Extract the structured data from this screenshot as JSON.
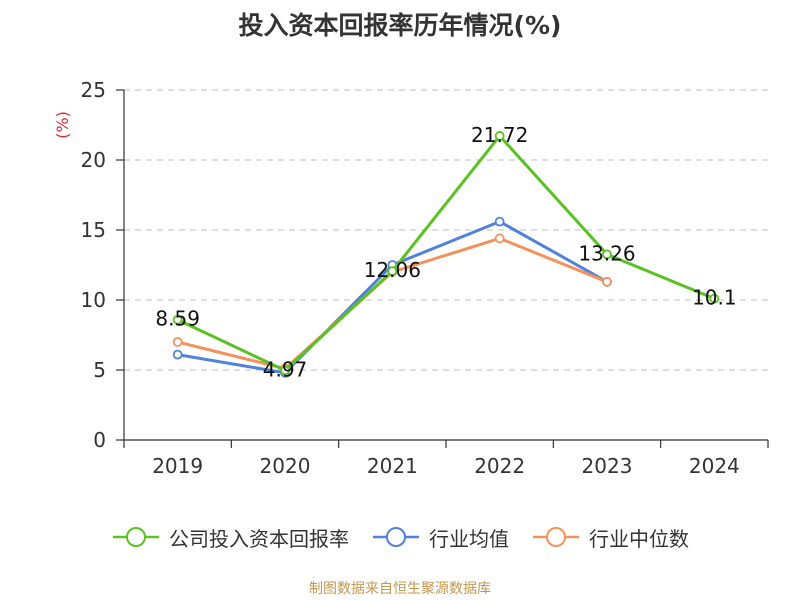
{
  "chart_data": {
    "type": "line",
    "title": "投入资本回报率历年情况(%)",
    "ylabel": "(%)",
    "xlabel": "",
    "ylim": [
      0,
      25
    ],
    "yticks": [
      0,
      5,
      10,
      15,
      20,
      25
    ],
    "categories": [
      "2019",
      "2020",
      "2021",
      "2022",
      "2023",
      "2024"
    ],
    "grid": true,
    "legend_position": "bottom",
    "series": [
      {
        "name": "公司投入资本回报率",
        "color": "#5ac220",
        "values": [
          8.59,
          4.97,
          12.06,
          21.72,
          13.26,
          10.1
        ],
        "labels": [
          "8.59",
          "4.97",
          "12.06",
          "21.72",
          "13.26",
          "10.1"
        ]
      },
      {
        "name": "行业均值",
        "color": "#4f81dd",
        "values": [
          6.1,
          4.8,
          12.5,
          15.6,
          11.3,
          null
        ]
      },
      {
        "name": "行业中位数",
        "color": "#f5915b",
        "values": [
          7.0,
          5.1,
          12.0,
          14.4,
          11.3,
          null
        ]
      }
    ]
  },
  "footer": {
    "source": "制图数据来自恒生聚源数据库"
  },
  "colors": {
    "axis": "#333333",
    "grid": "#cccccc",
    "ylabel": "#d32f2f"
  }
}
